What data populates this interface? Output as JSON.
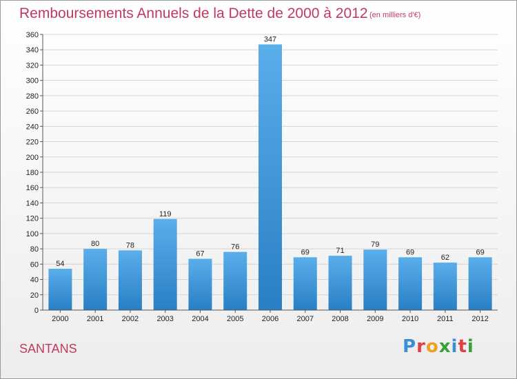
{
  "header": {
    "title": "Remboursements Annuels de la Dette de 2000 à 2012",
    "unit": "(en milliers d'€)"
  },
  "footer": {
    "place": "SANTANS",
    "logo": "Proxiti"
  },
  "colors": {
    "title": "#c0395e",
    "bar_top": "#5aaeea",
    "bar_bottom": "#2a7fc4",
    "grid": "#d4d4d4",
    "logo_letters": [
      "#3a8fd6",
      "#e04040",
      "#f0a020",
      "#3aa03a",
      "#3a8fd6",
      "#e04040",
      "#3aa03a"
    ]
  },
  "chart_data": {
    "type": "bar",
    "title": "Remboursements Annuels de la Dette de 2000 à 2012",
    "subtitle": "(en milliers d'€)",
    "categories": [
      "2000",
      "2001",
      "2002",
      "2003",
      "2004",
      "2005",
      "2006",
      "2007",
      "2008",
      "2009",
      "2010",
      "2011",
      "2012"
    ],
    "values": [
      54,
      80,
      78,
      119,
      67,
      76,
      347,
      69,
      71,
      79,
      69,
      62,
      69
    ],
    "ylim": [
      0,
      360
    ],
    "ytick_step": 20,
    "grid": true,
    "data_labels": true
  }
}
